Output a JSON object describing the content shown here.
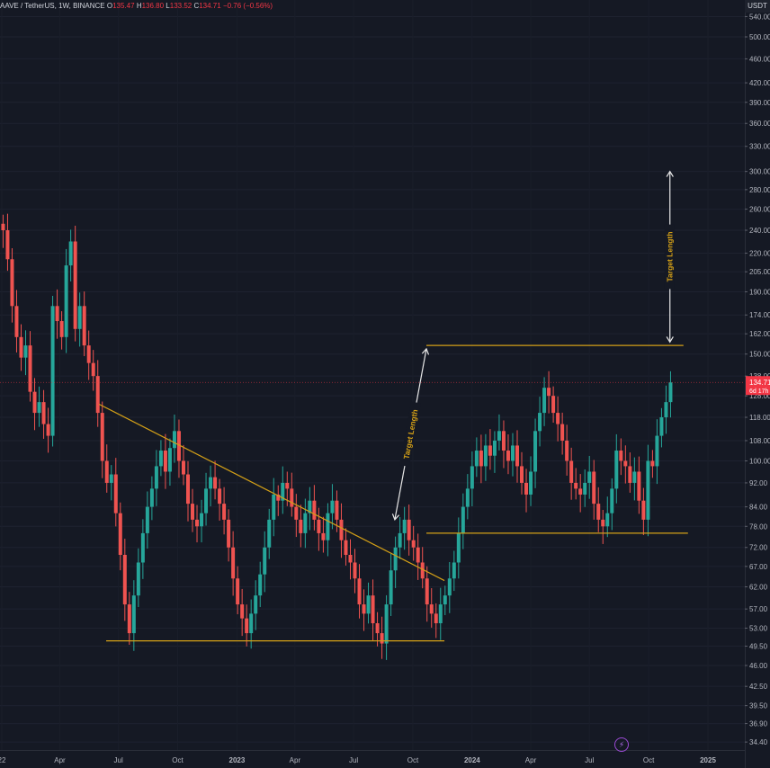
{
  "header": {
    "symbol": "AAVE / TetherUS, 1W, BINANCE",
    "open_label": "O",
    "open": "135.47",
    "high_label": "H",
    "high": "136.80",
    "low_label": "L",
    "low": "133.52",
    "close_label": "C",
    "close": "134.71",
    "change": "−0.76 (−0.56%)"
  },
  "currency": "USDT",
  "colors": {
    "background": "#151924",
    "up": "#26a69a",
    "down": "#ef5350",
    "pattern_line": "#d4a017",
    "annotation": "#e8e8e8",
    "last_price_bg": "#f23645"
  },
  "chart_data": {
    "type": "candlestick",
    "scale": "log",
    "y_tick_labels": [
      "540.00",
      "500.00",
      "460.00",
      "420.00",
      "390.00",
      "360.00",
      "330.00",
      "300.00",
      "280.00",
      "260.00",
      "240.00",
      "220.00",
      "205.00",
      "190.00",
      "174.00",
      "162.00",
      "150.00",
      "138.00",
      "128.00",
      "118.00",
      "108.00",
      "100.00",
      "92.00",
      "84.00",
      "78.00",
      "72.00",
      "67.00",
      "62.00",
      "57.00",
      "53.00",
      "49.50",
      "46.00",
      "42.50",
      "39.50",
      "36.90",
      "34.40"
    ],
    "x_tick_labels": [
      {
        "label": "22",
        "date": "2022-01-01"
      },
      {
        "label": "Apr",
        "date": "2022-04-01"
      },
      {
        "label": "Jul",
        "date": "2022-07-01"
      },
      {
        "label": "Oct",
        "date": "2022-10-01"
      },
      {
        "label": "2023",
        "date": "2023-01-01"
      },
      {
        "label": "Apr",
        "date": "2023-04-01"
      },
      {
        "label": "Jul",
        "date": "2023-07-01"
      },
      {
        "label": "Oct",
        "date": "2023-10-01"
      },
      {
        "label": "2024",
        "date": "2024-01-01"
      },
      {
        "label": "Apr",
        "date": "2024-04-01"
      },
      {
        "label": "Jul",
        "date": "2024-07-01"
      },
      {
        "label": "Oct",
        "date": "2024-10-01"
      },
      {
        "label": "2025",
        "date": "2025-01-01"
      }
    ],
    "last_price_label": "134.71",
    "countdown_label": "6d 17h",
    "closes": [
      240,
      215,
      180,
      160,
      148,
      155,
      130,
      120,
      125,
      115,
      110,
      180,
      170,
      160,
      210,
      230,
      165,
      180,
      155,
      145,
      138,
      120,
      100,
      92,
      95,
      82,
      70,
      58,
      52,
      60,
      68,
      76,
      84,
      90,
      98,
      104,
      96,
      105,
      112,
      100,
      95,
      85,
      80,
      78,
      82,
      90,
      94,
      90,
      85,
      80,
      72,
      64,
      58,
      55,
      52,
      56,
      60,
      65,
      72,
      80,
      88,
      86,
      92,
      90,
      84,
      80,
      76,
      82,
      86,
      80,
      76,
      74,
      82,
      86,
      80,
      74,
      70,
      68,
      64,
      58,
      56,
      60,
      54,
      52,
      50,
      58,
      66,
      72,
      76,
      80,
      74,
      72,
      68,
      64,
      58,
      56,
      54,
      58,
      60,
      64,
      68,
      76,
      84,
      90,
      98,
      104,
      98,
      106,
      102,
      108,
      112,
      104,
      100,
      106,
      98,
      92,
      88,
      96,
      112,
      120,
      132,
      128,
      120,
      115,
      108,
      100,
      92,
      90,
      88,
      92,
      96,
      85,
      80,
      78,
      82,
      90,
      104,
      100,
      98,
      92,
      96,
      86,
      80,
      100,
      98,
      110,
      118,
      125,
      134.71
    ],
    "annotations": {
      "descending_trendline": [
        {
          "date": "2022-06-01",
          "price": 124
        },
        {
          "date": "2023-11-19",
          "price": 63.5
        }
      ],
      "triangle_support": [
        {
          "date": "2022-06-12",
          "price": 50.5
        },
        {
          "date": "2023-11-19",
          "price": 50.5
        }
      ],
      "range_resistance": [
        {
          "date": "2023-10-22",
          "price": 155
        },
        {
          "date": "2024-11-24",
          "price": 155
        }
      ],
      "range_support": [
        {
          "date": "2023-10-22",
          "price": 76
        },
        {
          "date": "2024-12-01",
          "price": 76
        }
      ],
      "target_arrow_1": [
        {
          "date": "2023-09-03",
          "price": 80
        },
        {
          "date": "2023-10-22",
          "price": 153
        }
      ],
      "target_arrow_2": [
        {
          "date": "2024-11-03",
          "price": 157
        },
        {
          "date": "2024-11-03",
          "price": 300
        }
      ],
      "target_label_1": "Target Length",
      "target_label_2": "Target Length"
    }
  }
}
